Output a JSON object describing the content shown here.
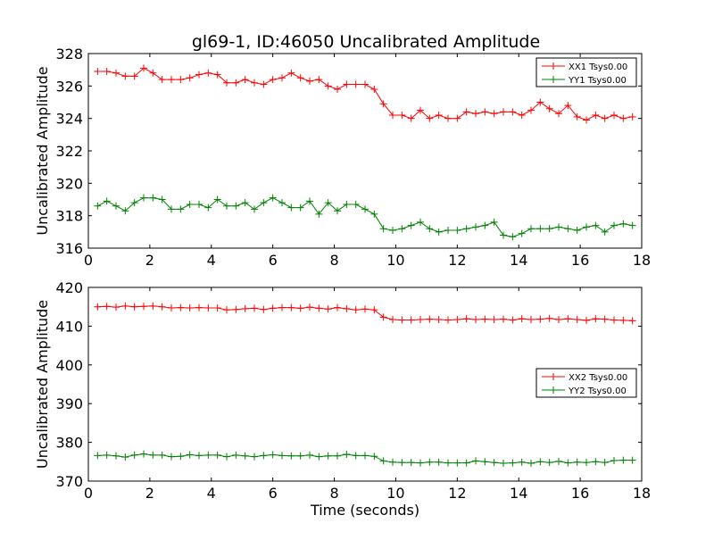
{
  "chart_data": [
    {
      "type": "line",
      "title": "gl69-1, ID:46050 Uncalibrated Amplitude",
      "xlabel": "",
      "ylabel": "Uncalibrated Amplitude",
      "xlim": [
        0,
        18
      ],
      "ylim": [
        316,
        328
      ],
      "xticks": [
        0,
        2,
        4,
        6,
        8,
        10,
        12,
        14,
        16,
        18
      ],
      "yticks": [
        316,
        318,
        320,
        322,
        324,
        326,
        328
      ],
      "grid": false,
      "legend_position": "top-right",
      "x": [
        0.3,
        0.6,
        0.9,
        1.2,
        1.5,
        1.8,
        2.1,
        2.4,
        2.7,
        3.0,
        3.3,
        3.6,
        3.9,
        4.2,
        4.5,
        4.8,
        5.1,
        5.4,
        5.7,
        6.0,
        6.3,
        6.6,
        6.9,
        7.2,
        7.5,
        7.8,
        8.1,
        8.4,
        8.7,
        9.0,
        9.3,
        9.6,
        9.9,
        10.2,
        10.5,
        10.8,
        11.1,
        11.4,
        11.7,
        12.0,
        12.3,
        12.6,
        12.9,
        13.2,
        13.5,
        13.8,
        14.1,
        14.4,
        14.7,
        15.0,
        15.3,
        15.6,
        15.9,
        16.2,
        16.5,
        16.8,
        17.1,
        17.4,
        17.7
      ],
      "series": [
        {
          "name": "XX1 Tsys0.00",
          "color": "#ff0000",
          "values": [
            326.9,
            326.9,
            326.8,
            326.6,
            326.6,
            327.1,
            326.8,
            326.4,
            326.4,
            326.4,
            326.5,
            326.7,
            326.8,
            326.7,
            326.2,
            326.2,
            326.4,
            326.2,
            326.1,
            326.4,
            326.5,
            326.8,
            326.5,
            326.3,
            326.4,
            326.0,
            325.8,
            326.1,
            326.1,
            326.1,
            325.8,
            324.9,
            324.2,
            324.2,
            324.0,
            324.5,
            324.0,
            324.2,
            324.0,
            324.0,
            324.4,
            324.3,
            324.4,
            324.3,
            324.4,
            324.4,
            324.2,
            324.5,
            325.0,
            324.6,
            324.3,
            324.8,
            324.1,
            323.9,
            324.2,
            324.0,
            324.2,
            324.0,
            324.1
          ]
        },
        {
          "name": "YY1 Tsys0.00",
          "color": "#008000",
          "values": [
            318.6,
            318.9,
            318.6,
            318.3,
            318.8,
            319.1,
            319.1,
            319.0,
            318.4,
            318.4,
            318.7,
            318.7,
            318.5,
            319.0,
            318.6,
            318.6,
            318.8,
            318.4,
            318.8,
            319.1,
            318.8,
            318.5,
            318.5,
            318.9,
            318.1,
            318.8,
            318.3,
            318.7,
            318.7,
            318.4,
            318.1,
            317.2,
            317.1,
            317.2,
            317.4,
            317.6,
            317.2,
            317.0,
            317.1,
            317.1,
            317.2,
            317.3,
            317.4,
            317.6,
            316.8,
            316.7,
            316.9,
            317.2,
            317.2,
            317.2,
            317.3,
            317.2,
            317.1,
            317.3,
            317.4,
            317.0,
            317.4,
            317.5,
            317.4
          ]
        }
      ]
    },
    {
      "type": "line",
      "title": "",
      "xlabel": "Time (seconds)",
      "ylabel": "Uncalibrated Amplitude",
      "xlim": [
        0,
        18
      ],
      "ylim": [
        370,
        420
      ],
      "xticks": [
        0,
        2,
        4,
        6,
        8,
        10,
        12,
        14,
        16,
        18
      ],
      "yticks": [
        370,
        380,
        390,
        400,
        410,
        420
      ],
      "grid": false,
      "legend_position": "center-right",
      "x": [
        0.3,
        0.6,
        0.9,
        1.2,
        1.5,
        1.8,
        2.1,
        2.4,
        2.7,
        3.0,
        3.3,
        3.6,
        3.9,
        4.2,
        4.5,
        4.8,
        5.1,
        5.4,
        5.7,
        6.0,
        6.3,
        6.6,
        6.9,
        7.2,
        7.5,
        7.8,
        8.1,
        8.4,
        8.7,
        9.0,
        9.3,
        9.6,
        9.9,
        10.2,
        10.5,
        10.8,
        11.1,
        11.4,
        11.7,
        12.0,
        12.3,
        12.6,
        12.9,
        13.2,
        13.5,
        13.8,
        14.1,
        14.4,
        14.7,
        15.0,
        15.3,
        15.6,
        15.9,
        16.2,
        16.5,
        16.8,
        17.1,
        17.4,
        17.7
      ],
      "series": [
        {
          "name": "XX2 Tsys0.00",
          "color": "#ff0000",
          "values": [
            415.0,
            415.1,
            414.9,
            415.2,
            415.0,
            415.1,
            415.2,
            415.0,
            414.7,
            414.8,
            414.7,
            414.8,
            414.7,
            414.7,
            414.2,
            414.3,
            414.5,
            414.6,
            414.3,
            414.6,
            414.8,
            414.8,
            414.6,
            414.9,
            414.6,
            414.4,
            414.8,
            414.5,
            414.2,
            414.4,
            414.2,
            412.3,
            411.7,
            411.6,
            411.6,
            411.7,
            411.8,
            411.7,
            411.6,
            411.7,
            411.9,
            411.7,
            411.8,
            411.7,
            411.8,
            411.6,
            411.9,
            411.7,
            411.8,
            412.0,
            411.7,
            411.9,
            411.7,
            411.5,
            411.9,
            411.8,
            411.6,
            411.5,
            411.4
          ]
        },
        {
          "name": "YY2 Tsys0.00",
          "color": "#008000",
          "values": [
            376.6,
            376.7,
            376.5,
            376.2,
            376.7,
            377.0,
            376.7,
            376.7,
            376.3,
            376.4,
            376.8,
            376.6,
            376.7,
            376.7,
            376.3,
            376.7,
            376.5,
            376.3,
            376.6,
            376.8,
            376.6,
            376.5,
            376.5,
            376.7,
            376.3,
            376.5,
            376.5,
            376.9,
            376.6,
            376.6,
            376.4,
            375.2,
            374.9,
            374.8,
            374.8,
            374.7,
            374.9,
            374.9,
            374.7,
            374.7,
            374.7,
            375.2,
            375.0,
            374.8,
            374.6,
            374.7,
            374.9,
            374.6,
            375.0,
            374.8,
            375.1,
            374.7,
            374.9,
            374.8,
            375.0,
            374.8,
            375.3,
            375.4,
            375.4
          ]
        }
      ]
    }
  ]
}
